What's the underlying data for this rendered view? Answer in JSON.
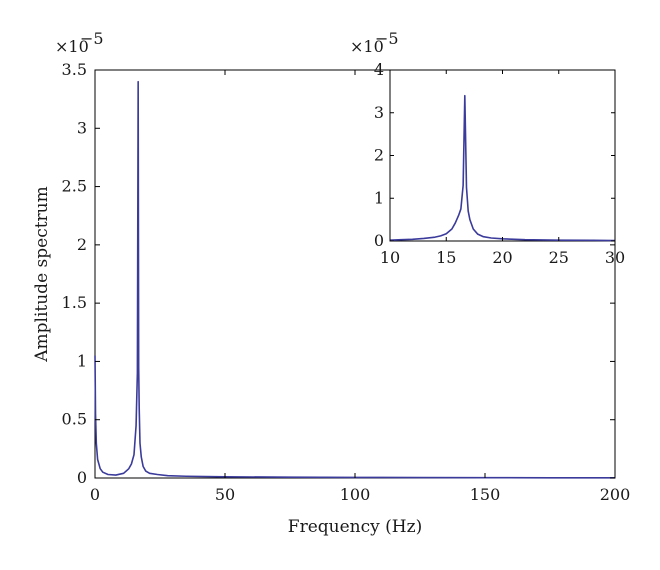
{
  "chart_data": [
    {
      "id": "main",
      "type": "line",
      "title": "",
      "xlabel": "Frequency (Hz)",
      "ylabel": "Amplitude spectrum",
      "xlim": [
        0,
        200
      ],
      "ylim": [
        0,
        3.5
      ],
      "y_scale_label": "×10",
      "y_scale_exponent": "−5",
      "xticks": [
        "0",
        "50",
        "100",
        "150",
        "200"
      ],
      "yticks": [
        "0",
        "0.5",
        "1",
        "1.5",
        "2",
        "2.5",
        "3",
        "3.5"
      ],
      "xtick_values": [
        0,
        50,
        100,
        150,
        200
      ],
      "ytick_values": [
        0,
        0.5,
        1,
        1.5,
        2,
        2.5,
        3,
        3.5
      ],
      "grid": false,
      "line_color": "#3b3b9c",
      "series": [
        {
          "x": [
            0,
            0.2,
            0.5,
            1,
            2,
            3,
            5,
            8,
            11,
            13,
            14,
            15,
            15.8,
            16.3,
            16.6,
            16.8,
            17.0,
            17.3,
            17.8,
            18.5,
            19.5,
            21,
            24,
            28,
            35,
            50,
            75,
            100,
            125,
            150,
            175,
            200
          ],
          "y": [
            1.05,
            0.55,
            0.3,
            0.16,
            0.08,
            0.05,
            0.03,
            0.025,
            0.04,
            0.08,
            0.12,
            0.2,
            0.45,
            0.9,
            3.4,
            0.95,
            0.6,
            0.3,
            0.18,
            0.1,
            0.06,
            0.04,
            0.03,
            0.02,
            0.015,
            0.01,
            0.007,
            0.005,
            0.004,
            0.003,
            0.002,
            0.002
          ]
        }
      ]
    },
    {
      "id": "inset",
      "type": "line",
      "title": "",
      "xlabel": "",
      "ylabel": "",
      "xlim": [
        10,
        30
      ],
      "ylim": [
        0,
        4
      ],
      "y_scale_label": "×10",
      "y_scale_exponent": "−5",
      "xticks": [
        "10",
        "15",
        "20",
        "25",
        "30"
      ],
      "yticks": [
        "0",
        "1",
        "2",
        "3",
        "4"
      ],
      "xtick_values": [
        10,
        15,
        20,
        25,
        30
      ],
      "ytick_values": [
        0,
        1,
        2,
        3,
        4
      ],
      "grid": false,
      "line_color": "#3b3b9c",
      "series": [
        {
          "x": [
            10,
            11,
            12,
            13,
            14,
            14.5,
            15,
            15.5,
            15.8,
            16.1,
            16.3,
            16.5,
            16.65,
            16.8,
            16.95,
            17.1,
            17.4,
            17.8,
            18.3,
            19,
            20,
            22,
            25,
            28,
            30
          ],
          "y": [
            0.02,
            0.03,
            0.04,
            0.06,
            0.09,
            0.12,
            0.17,
            0.28,
            0.42,
            0.6,
            0.75,
            1.3,
            3.4,
            1.25,
            0.7,
            0.5,
            0.28,
            0.16,
            0.1,
            0.07,
            0.05,
            0.03,
            0.02,
            0.015,
            0.01
          ]
        }
      ]
    }
  ]
}
